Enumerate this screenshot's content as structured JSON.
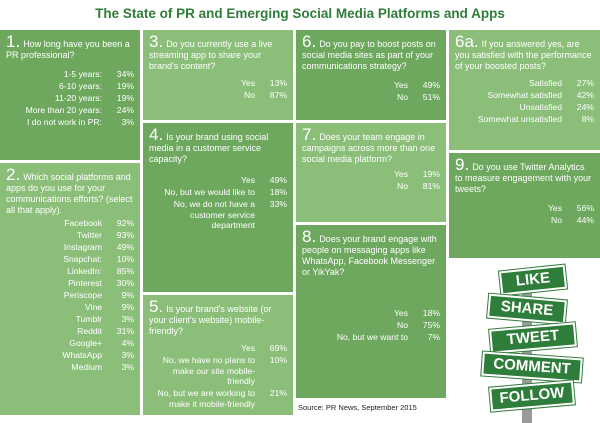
{
  "title": "The State of PR and Emerging Social Media Platforms and Apps",
  "panels": [
    {
      "number": "1.",
      "question": "How long have you been a PR professional?",
      "rows": [
        [
          "1-5 years:",
          "34%"
        ],
        [
          "6-10 years:",
          "19%"
        ],
        [
          "11-20 years:",
          "19%"
        ],
        [
          "More than 20 years:",
          "24%"
        ],
        [
          "I do not work in PR:",
          "3%"
        ]
      ]
    },
    {
      "number": "2.",
      "question": "Which social platforms and apps do you use for your communications efforts? (select all that apply).",
      "rows": [
        [
          "Facebook",
          "92%"
        ],
        [
          "Twitter",
          "93%"
        ],
        [
          "Instagram",
          "49%"
        ],
        [
          "Snapchat:",
          "10%"
        ],
        [
          "LinkedIn:",
          "85%"
        ],
        [
          "Pinterest",
          "30%"
        ],
        [
          "Periscope",
          "9%"
        ],
        [
          "Vine",
          "9%"
        ],
        [
          "Tumblr",
          "3%"
        ],
        [
          "Reddit",
          "31%"
        ],
        [
          "Google+",
          "4%"
        ],
        [
          "WhatsApp",
          "3%"
        ],
        [
          "Medium",
          "3%"
        ]
      ]
    },
    {
      "number": "3.",
      "question": "Do you currently use a live streaming app to share your brand's content?",
      "rows": [
        [
          "Yes",
          "13%"
        ],
        [
          "No",
          "87%"
        ]
      ]
    },
    {
      "number": "4.",
      "question": "Is your brand using social media in a customer service capacity?",
      "rows": [
        [
          "Yes",
          "49%"
        ],
        [
          "No, but we would like to",
          "18%"
        ],
        [
          "No, we do not have a customer service department",
          "33%"
        ]
      ]
    },
    {
      "number": "5.",
      "question": "Is your brand's website (or your client's website) mobile-friendly?",
      "rows": [
        [
          "Yes",
          "69%"
        ],
        [
          "No, we have no plans to make our site mobile-friendly",
          "10%"
        ],
        [
          "No, but we are working to make it mobile-friendly",
          "21%"
        ]
      ]
    },
    {
      "number": "6.",
      "question": "Do you pay to boost posts on social media sites as part of your communications strategy?",
      "rows": [
        [
          "Yes",
          "49%"
        ],
        [
          "No",
          "51%"
        ]
      ]
    },
    {
      "number": "6a.",
      "question": "If you answered yes, are you satisfied with the performance of your boosted posts?",
      "rows": [
        [
          "Satisfied",
          "27%"
        ],
        [
          "Somewhat satisfied",
          "42%"
        ],
        [
          "Unsatisfied",
          "24%"
        ],
        [
          "Somewhat unsatisfied",
          "8%"
        ]
      ]
    },
    {
      "number": "7.",
      "question": "Does your team engage in campaigns across more than one social media platform?",
      "rows": [
        [
          "Yes",
          "19%"
        ],
        [
          "No",
          "81%"
        ]
      ]
    },
    {
      "number": "8.",
      "question": "Does your brand engage with people on messaging apps like WhatsApp, Facebook Messenger or YikYak?",
      "rows": [
        [
          "Yes",
          "18%"
        ],
        [
          "No",
          "75%"
        ],
        [
          "No, but we want to",
          "7%"
        ]
      ]
    },
    {
      "number": "9.",
      "question": "Do you use Twitter Analytics to measure engagement with your tweets?",
      "rows": [
        [
          "Yes",
          "56%"
        ],
        [
          "No",
          "44%"
        ]
      ]
    }
  ],
  "source": "Source: PR News, September 2015",
  "signs": [
    "LIKE",
    "SHARE",
    "TWEET",
    "COMMENT",
    "FOLLOW"
  ]
}
